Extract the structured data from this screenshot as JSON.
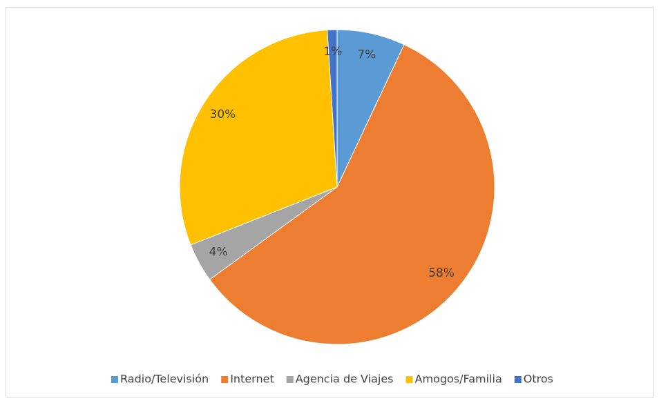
{
  "chart_data": {
    "type": "pie",
    "categories": [
      "Radio/Televisión",
      "Internet",
      "Agencia de Viajes",
      "Amogos/Familia",
      "Otros"
    ],
    "values": [
      7,
      58,
      4,
      30,
      1
    ],
    "value_labels": [
      "7%",
      "58%",
      "4%",
      "30%",
      "1%"
    ],
    "colors": [
      "#5b9bd5",
      "#ed7d31",
      "#a5a5a5",
      "#ffc000",
      "#4472c4"
    ],
    "legend": "bottom"
  }
}
